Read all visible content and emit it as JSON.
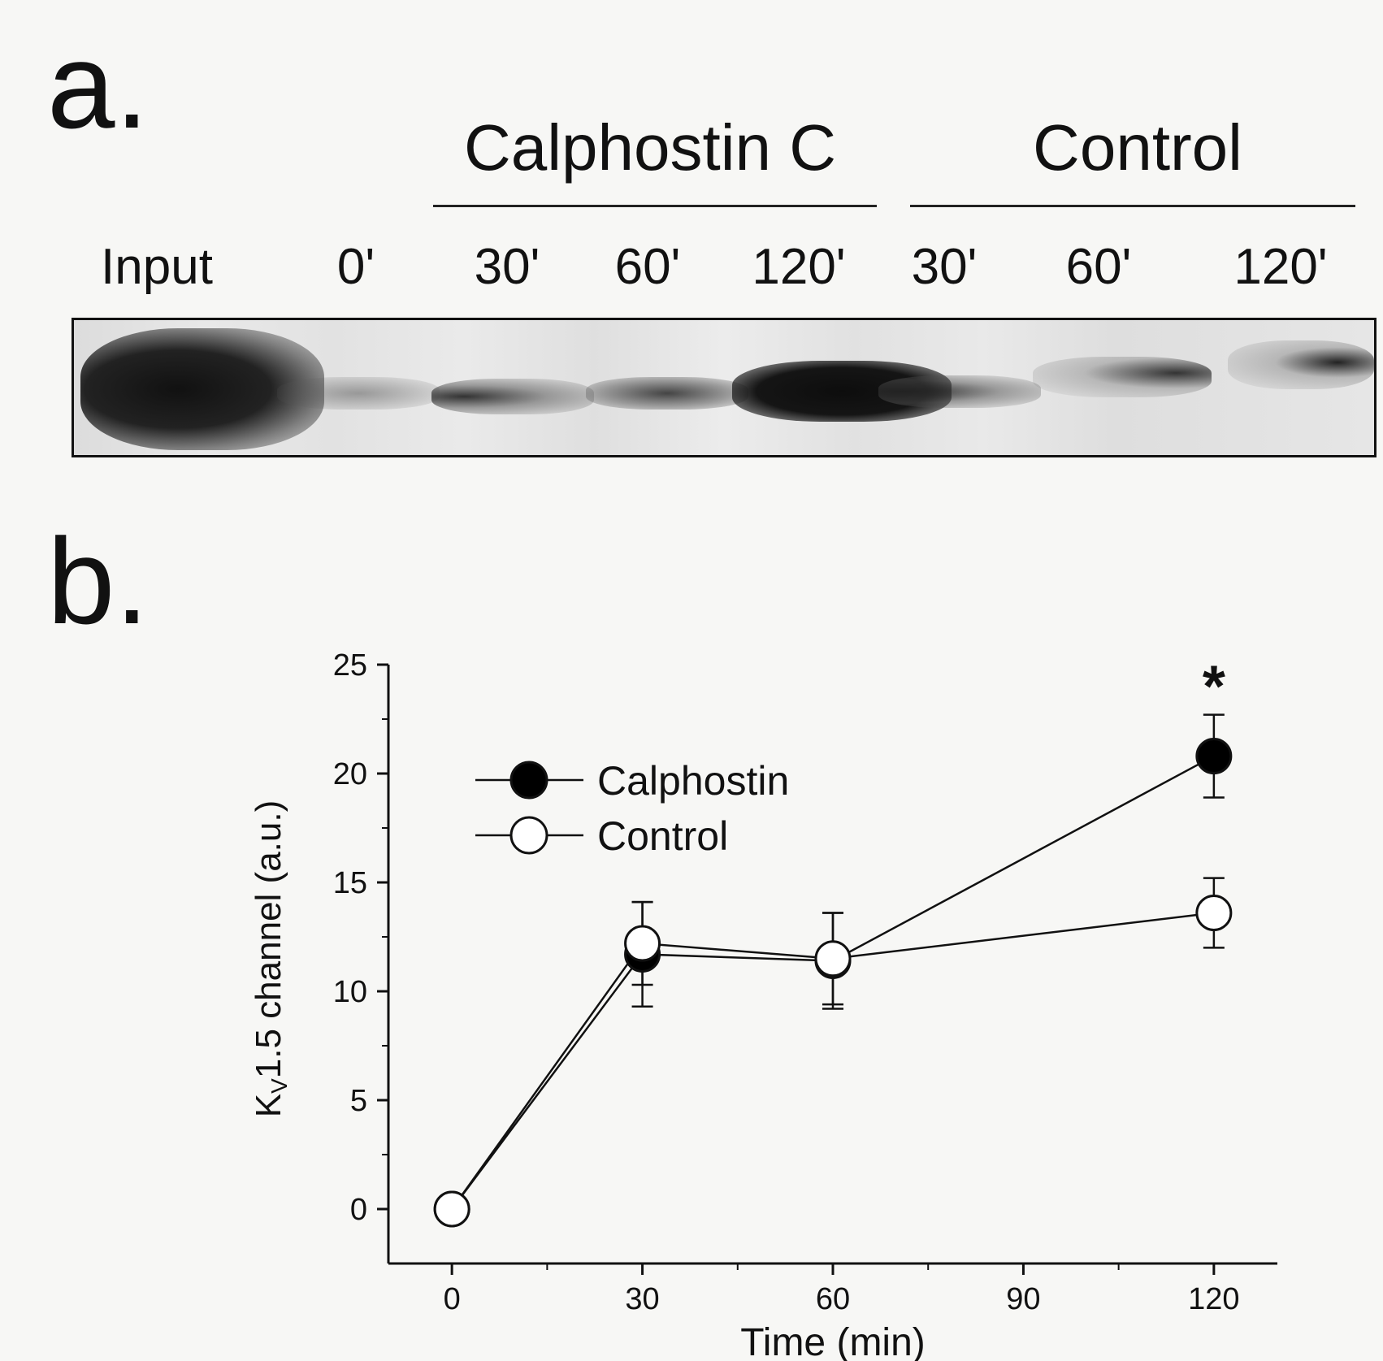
{
  "panel_a": {
    "letter": "a.",
    "groups": [
      {
        "label": "Calphostin C"
      },
      {
        "label": "Control"
      }
    ],
    "lanes": [
      "Input",
      "0'",
      "30'",
      "60'",
      "120'",
      "30'",
      "60'",
      "120'"
    ]
  },
  "panel_b": {
    "letter": "b."
  },
  "chart_data": {
    "type": "line",
    "x": [
      0,
      30,
      60,
      120
    ],
    "xlabel": "Time (min)",
    "ylabel_main": "K",
    "ylabel_sub": "V",
    "ylabel_rest": "1.5 channel (a.u.)",
    "xlim": [
      -10,
      130
    ],
    "ylim": [
      -2.5,
      25
    ],
    "xticks": [
      0,
      30,
      60,
      90,
      120
    ],
    "yticks": [
      0,
      5,
      10,
      15,
      20,
      25
    ],
    "grid": false,
    "legend_position": "top-left",
    "series": [
      {
        "name": "Calphostin",
        "marker": "filled-circle",
        "color": "#000000",
        "values": [
          0,
          11.7,
          11.4,
          20.8
        ],
        "errors": [
          0,
          2.4,
          2.2,
          1.9
        ]
      },
      {
        "name": "Control",
        "marker": "open-circle",
        "color": "#000000",
        "values": [
          0,
          12.2,
          11.5,
          13.6
        ],
        "errors": [
          0,
          1.9,
          2.1,
          1.6
        ]
      }
    ],
    "annotations": [
      {
        "text": "*",
        "x": 120
      }
    ]
  }
}
